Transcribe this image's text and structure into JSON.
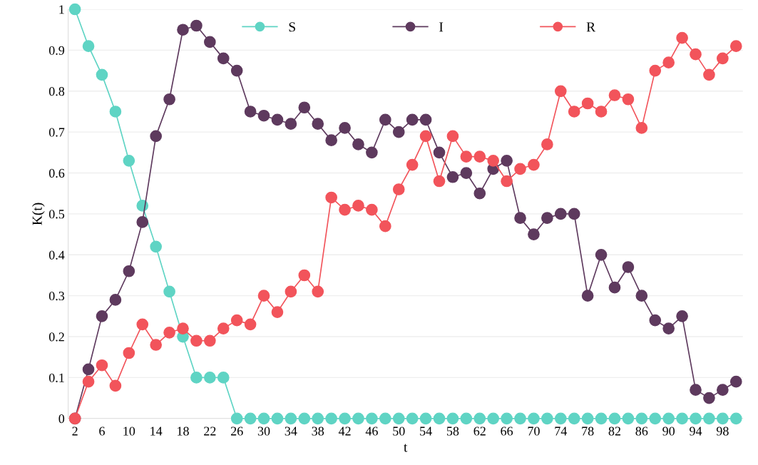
{
  "chart_data": {
    "type": "line",
    "xlabel": "t",
    "ylabel": "K(t)",
    "categories": [
      "2",
      null,
      "6",
      null,
      "10",
      null,
      "14",
      null,
      "18",
      null,
      "22",
      null,
      "26",
      null,
      "30",
      null,
      "34",
      null,
      "38",
      null,
      "42",
      null,
      "46",
      null,
      "50",
      null,
      "54",
      null,
      "58",
      null,
      "62",
      null,
      "66",
      null,
      "70",
      null,
      "74",
      null,
      "78",
      null,
      "82",
      null,
      "86",
      null,
      "90",
      null,
      "94",
      null,
      "98",
      null
    ],
    "series": [
      {
        "name": "S",
        "color": "#5fd4c4",
        "values": [
          1,
          0.91,
          0.84,
          0.75,
          0.63,
          0.52,
          0.42,
          0.31,
          0.2,
          0.1,
          0.1,
          0.1,
          0,
          0,
          0,
          0,
          0,
          0,
          0,
          0,
          0,
          0,
          0,
          0,
          0,
          0,
          0,
          0,
          0,
          0,
          0,
          0,
          0,
          0,
          0,
          0,
          0,
          0,
          0,
          0,
          0,
          0,
          0,
          0,
          0,
          0,
          0,
          0,
          0,
          0
        ]
      },
      {
        "name": "I",
        "color": "#5e3a5e",
        "values": [
          0,
          0.12,
          0.25,
          0.29,
          0.36,
          0.48,
          0.69,
          0.78,
          0.95,
          0.96,
          0.92,
          0.88,
          0.85,
          0.75,
          0.74,
          0.73,
          0.72,
          0.76,
          0.72,
          0.68,
          0.71,
          0.67,
          0.65,
          0.73,
          0.7,
          0.73,
          0.73,
          0.65,
          0.59,
          0.6,
          0.55,
          0.61,
          0.63,
          0.49,
          0.45,
          0.49,
          0.5,
          0.5,
          0.3,
          0.4,
          0.32,
          0.37,
          0.3,
          0.24,
          0.22,
          0.25,
          0.07,
          0.05,
          0.07,
          0.09
        ]
      },
      {
        "name": "R",
        "color": "#f2545b",
        "values": [
          0,
          0.09,
          0.13,
          0.08,
          0.16,
          0.23,
          0.18,
          0.21,
          0.22,
          0.19,
          0.19,
          0.22,
          0.24,
          0.23,
          0.3,
          0.26,
          0.31,
          0.35,
          0.31,
          0.54,
          0.51,
          0.52,
          0.51,
          0.47,
          0.56,
          0.62,
          0.69,
          0.58,
          0.69,
          0.64,
          0.64,
          0.63,
          0.58,
          0.61,
          0.62,
          0.67,
          0.8,
          0.75,
          0.77,
          0.75,
          0.79,
          0.78,
          0.71,
          0.85,
          0.87,
          0.93,
          0.89,
          0.84,
          0.88,
          0.91
        ]
      }
    ],
    "ylim": [
      0,
      1
    ],
    "yticks": [
      0,
      0.1,
      0.2,
      0.3,
      0.4,
      0.5,
      0.6,
      0.7,
      0.8,
      0.9,
      1
    ],
    "grid": "y",
    "legend": "top",
    "marker": "circle",
    "line_style": "solid"
  }
}
